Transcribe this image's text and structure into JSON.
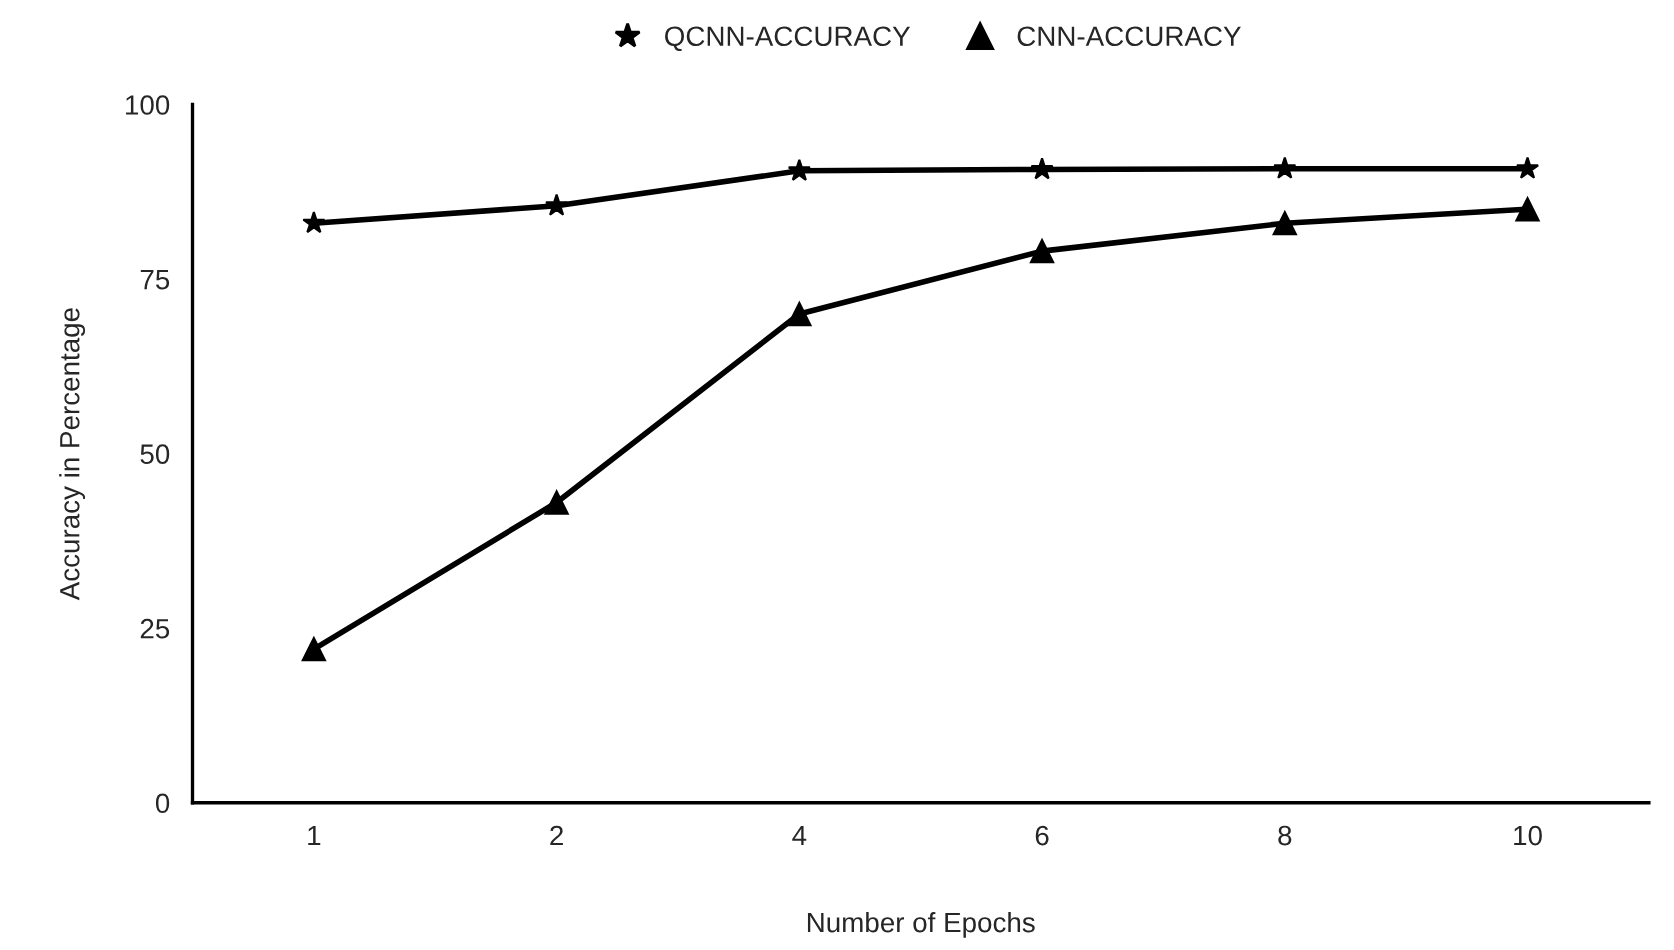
{
  "chart_data": {
    "type": "line",
    "xlabel": "Number of Epochs",
    "ylabel": "Accuracy in Percentage",
    "categories": [
      "1",
      "2",
      "4",
      "6",
      "8",
      "10"
    ],
    "series": [
      {
        "name": "QCNN-ACCURACY",
        "color": "#000000",
        "marker": "star",
        "values": [
          83,
          85.5,
          90.5,
          90.7,
          90.8,
          90.8
        ]
      },
      {
        "name": "CNN-ACCURACY",
        "color": "#000000",
        "marker": "triangle",
        "values": [
          22,
          43,
          70,
          79,
          83,
          85
        ]
      }
    ],
    "ylim": [
      0,
      100
    ],
    "yticks": [
      0,
      25,
      50,
      75,
      100
    ],
    "grid": false,
    "legend": "top",
    "line_style": "solid"
  }
}
